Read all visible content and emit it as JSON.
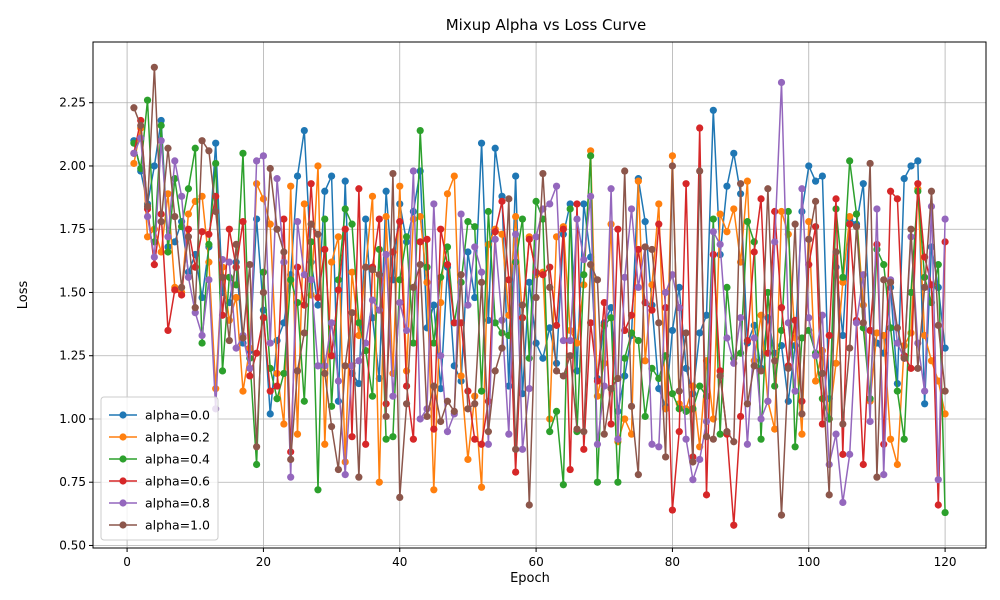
{
  "chart_data": {
    "type": "line",
    "title": "Mixup Alpha vs Loss Curve",
    "xlabel": "Epoch",
    "ylabel": "Loss",
    "xlim": [
      -5,
      126
    ],
    "ylim": [
      0.49,
      2.49
    ],
    "xticks": [
      0,
      20,
      40,
      60,
      80,
      100,
      120
    ],
    "yticks": [
      0.5,
      0.75,
      1.0,
      1.25,
      1.5,
      1.75,
      2.0,
      2.25
    ],
    "ytick_labels": [
      "0.50",
      "0.75",
      "1.00",
      "1.25",
      "1.50",
      "1.75",
      "2.00",
      "2.25"
    ],
    "grid": true,
    "legend_position": "lower-left",
    "x": [
      1,
      2,
      3,
      4,
      5,
      6,
      7,
      8,
      9,
      10,
      11,
      12,
      13,
      14,
      15,
      16,
      17,
      18,
      19,
      20,
      21,
      22,
      23,
      24,
      25,
      26,
      27,
      28,
      29,
      30,
      31,
      32,
      33,
      34,
      35,
      36,
      37,
      38,
      39,
      40,
      41,
      42,
      43,
      44,
      45,
      46,
      47,
      48,
      49,
      50,
      51,
      52,
      53,
      54,
      55,
      56,
      57,
      58,
      59,
      60,
      61,
      62,
      63,
      64,
      65,
      66,
      67,
      68,
      69,
      70,
      71,
      72,
      73,
      74,
      75,
      76,
      77,
      78,
      79,
      80,
      81,
      82,
      83,
      84,
      85,
      86,
      87,
      88,
      89,
      90,
      91,
      92,
      93,
      94,
      95,
      96,
      97,
      98,
      99,
      100,
      101,
      102,
      103,
      104,
      105,
      106,
      107,
      108,
      109,
      110,
      111,
      112,
      113,
      114,
      115,
      116,
      117,
      118,
      119,
      120
    ],
    "series": [
      {
        "name": "alpha=0.0",
        "color": "#1f77b4",
        "values": [
          2.1,
          1.98,
          1.85,
          2.0,
          2.18,
          1.68,
          1.7,
          1.78,
          1.58,
          1.65,
          1.48,
          1.68,
          2.09,
          1.5,
          1.46,
          1.62,
          1.3,
          1.27,
          1.79,
          1.43,
          1.02,
          1.31,
          1.38,
          1.57,
          1.96,
          2.14,
          1.62,
          1.45,
          1.9,
          1.96,
          1.07,
          1.94,
          1.18,
          1.14,
          1.79,
          1.4,
          1.16,
          1.9,
          1.55,
          1.85,
          1.7,
          1.82,
          1.98,
          1.36,
          1.45,
          1.12,
          1.6,
          1.21,
          1.15,
          1.66,
          1.48,
          2.09,
          1.39,
          2.07,
          1.88,
          1.13,
          1.96,
          1.1,
          1.54,
          1.3,
          1.24,
          1.36,
          1.22,
          1.73,
          1.85,
          1.19,
          1.85,
          1.64,
          1.16,
          1.38,
          1.44,
          1.03,
          1.17,
          1.33,
          1.95,
          1.78,
          1.45,
          1.12,
          1.05,
          1.35,
          1.52,
          1.2,
          1.1,
          1.34,
          1.41,
          2.22,
          1.65,
          1.92,
          2.05,
          1.89,
          1.3,
          1.37,
          1.2,
          1.4,
          1.26,
          1.29,
          1.07,
          1.29,
          1.82,
          2.0,
          1.94,
          1.96,
          1.08,
          1.6,
          1.33,
          1.79,
          1.77,
          1.93,
          1.35,
          1.3,
          1.26,
          1.52,
          1.14,
          1.95,
          2.0,
          2.02,
          1.06,
          1.68,
          1.52,
          1.28
        ]
      },
      {
        "name": "alpha=0.2",
        "color": "#ff7f0e",
        "values": [
          2.01,
          2.15,
          1.72,
          1.75,
          1.66,
          1.89,
          1.52,
          1.5,
          1.81,
          1.86,
          1.88,
          1.62,
          1.12,
          1.6,
          1.39,
          1.48,
          1.11,
          1.28,
          1.93,
          1.87,
          1.77,
          1.18,
          0.98,
          1.92,
          0.94,
          1.85,
          1.49,
          2.0,
          0.9,
          1.62,
          1.72,
          0.83,
          1.58,
          1.33,
          1.6,
          1.88,
          0.75,
          1.8,
          1.18,
          1.92,
          1.19,
          1.79,
          1.8,
          1.54,
          0.72,
          1.46,
          1.89,
          1.96,
          1.17,
          0.84,
          1.09,
          0.73,
          1.69,
          1.75,
          1.73,
          1.41,
          1.8,
          1.4,
          1.72,
          1.57,
          1.58,
          1.0,
          1.72,
          1.76,
          1.35,
          1.3,
          1.53,
          2.06,
          1.09,
          1.22,
          1.77,
          0.91,
          1.0,
          0.94,
          1.94,
          1.23,
          1.53,
          1.85,
          1.04,
          2.04,
          1.06,
          1.04,
          1.13,
          0.89,
          1.23,
          1.0,
          1.81,
          1.74,
          1.83,
          1.62,
          1.94,
          1.23,
          1.41,
          1.07,
          0.96,
          1.82,
          1.73,
          1.32,
          0.94,
          1.78,
          1.15,
          1.27,
          1.0,
          1.22,
          1.54,
          1.8,
          1.81,
          1.45,
          1.07,
          1.34,
          1.33,
          0.92,
          0.82,
          1.29,
          1.34,
          1.91,
          1.33,
          1.23,
          1.15,
          1.02
        ]
      },
      {
        "name": "alpha=0.4",
        "color": "#2ca02c",
        "values": [
          2.09,
          1.99,
          2.26,
          1.7,
          2.16,
          1.66,
          1.95,
          1.76,
          1.91,
          2.07,
          1.3,
          1.69,
          2.01,
          1.19,
          1.56,
          1.53,
          2.05,
          1.24,
          0.82,
          1.58,
          1.2,
          1.08,
          1.18,
          1.55,
          1.46,
          1.07,
          1.7,
          0.72,
          1.79,
          1.05,
          1.55,
          1.83,
          1.77,
          1.38,
          1.27,
          1.09,
          1.67,
          0.92,
          0.93,
          1.55,
          1.72,
          1.3,
          2.14,
          1.6,
          1.3,
          1.56,
          1.68,
          1.38,
          1.54,
          1.78,
          1.76,
          1.11,
          1.82,
          1.38,
          1.34,
          1.33,
          1.62,
          1.79,
          1.24,
          1.86,
          1.79,
          0.95,
          1.03,
          0.74,
          1.83,
          0.95,
          1.57,
          2.04,
          0.75,
          1.37,
          1.4,
          0.75,
          1.24,
          1.34,
          1.31,
          1.01,
          1.2,
          1.16,
          1.25,
          1.1,
          1.04,
          1.03,
          1.04,
          1.13,
          1.09,
          1.79,
          0.94,
          1.52,
          1.24,
          1.26,
          1.78,
          1.7,
          0.92,
          1.5,
          1.13,
          1.35,
          1.82,
          0.89,
          1.32,
          1.35,
          1.26,
          1.08,
          1.0,
          1.83,
          1.56,
          2.02,
          1.81,
          1.36,
          1.08,
          1.67,
          1.61,
          1.36,
          1.11,
          0.92,
          1.5,
          1.9,
          1.56,
          1.46,
          1.61,
          0.63
        ]
      },
      {
        "name": "alpha=0.6",
        "color": "#d62728",
        "values": [
          2.05,
          2.18,
          1.83,
          1.61,
          1.81,
          1.35,
          1.51,
          1.49,
          1.75,
          1.6,
          1.74,
          1.73,
          1.88,
          1.41,
          1.75,
          1.6,
          1.78,
          1.17,
          1.26,
          1.4,
          1.11,
          1.13,
          1.79,
          0.87,
          1.6,
          1.45,
          1.93,
          1.48,
          1.67,
          1.25,
          1.51,
          1.75,
          0.93,
          1.91,
          0.9,
          1.6,
          1.79,
          1.06,
          1.66,
          1.78,
          1.13,
          0.92,
          1.7,
          1.71,
          0.96,
          1.75,
          1.61,
          1.38,
          1.38,
          1.11,
          0.92,
          0.9,
          1.07,
          1.74,
          1.86,
          1.55,
          0.79,
          1.4,
          1.71,
          1.58,
          1.57,
          1.6,
          1.37,
          1.75,
          0.8,
          1.85,
          0.88,
          1.38,
          1.15,
          1.46,
          0.98,
          1.75,
          1.35,
          1.41,
          1.67,
          1.46,
          1.43,
          1.77,
          1.44,
          0.64,
          0.95,
          1.93,
          0.85,
          2.15,
          0.7,
          1.65,
          1.19,
          0.94,
          0.58,
          1.01,
          1.31,
          1.66,
          1.87,
          1.26,
          1.82,
          1.44,
          1.21,
          1.39,
          1.07,
          1.61,
          1.76,
          0.98,
          1.33,
          1.87,
          0.86,
          1.77,
          1.39,
          0.82,
          1.35,
          1.69,
          0.9,
          1.9,
          1.87,
          1.25,
          1.2,
          1.93,
          1.64,
          1.53,
          0.66,
          1.7
        ]
      },
      {
        "name": "alpha=0.8",
        "color": "#9467bd",
        "values": [
          2.05,
          2.11,
          1.8,
          1.64,
          2.1,
          1.72,
          2.02,
          1.88,
          1.56,
          1.42,
          1.33,
          1.55,
          1.04,
          1.63,
          1.62,
          1.28,
          1.33,
          1.2,
          2.02,
          2.04,
          1.3,
          1.95,
          1.62,
          0.77,
          1.78,
          1.57,
          1.55,
          1.21,
          1.21,
          1.38,
          1.15,
          0.78,
          1.21,
          1.23,
          1.3,
          1.47,
          1.43,
          1.65,
          1.09,
          1.46,
          1.35,
          1.98,
          1.0,
          1.04,
          1.85,
          1.25,
          0.95,
          1.02,
          1.81,
          1.45,
          1.68,
          1.58,
          0.9,
          1.71,
          1.39,
          0.94,
          1.73,
          0.88,
          1.12,
          1.72,
          1.83,
          1.85,
          1.92,
          1.31,
          1.31,
          1.79,
          1.63,
          1.88,
          0.9,
          1.13,
          1.91,
          0.92,
          1.56,
          1.83,
          1.52,
          1.68,
          0.9,
          0.89,
          1.5,
          1.57,
          1.44,
          0.92,
          0.76,
          0.84,
          0.99,
          1.74,
          1.69,
          1.32,
          1.22,
          1.4,
          0.9,
          1.32,
          1.0,
          1.07,
          1.7,
          2.33,
          1.38,
          1.11,
          1.91,
          1.4,
          1.25,
          1.41,
          0.82,
          0.94,
          0.67,
          0.86,
          1.38,
          1.57,
          0.99,
          1.83,
          0.78,
          1.55,
          1.3,
          1.24,
          1.72,
          1.3,
          1.11,
          1.84,
          0.76,
          1.79
        ]
      },
      {
        "name": "alpha=1.0",
        "color": "#8c564b",
        "values": [
          2.23,
          2.16,
          1.84,
          2.39,
          1.78,
          2.07,
          1.8,
          1.52,
          1.72,
          1.44,
          2.1,
          2.06,
          1.82,
          1.56,
          1.31,
          1.69,
          1.32,
          1.61,
          0.89,
          1.5,
          1.99,
          1.75,
          1.66,
          0.84,
          1.19,
          1.34,
          1.77,
          1.73,
          1.18,
          0.97,
          0.8,
          1.21,
          1.42,
          0.77,
          1.6,
          1.59,
          1.57,
          1.01,
          1.97,
          0.69,
          1.06,
          1.52,
          1.61,
          1.01,
          1.13,
          0.99,
          1.07,
          1.03,
          1.57,
          1.04,
          1.06,
          1.54,
          0.95,
          1.19,
          1.28,
          1.87,
          0.88,
          1.45,
          0.66,
          1.48,
          1.97,
          1.52,
          1.19,
          1.17,
          1.25,
          0.96,
          0.95,
          1.61,
          1.55,
          0.94,
          1.12,
          1.16,
          1.98,
          1.05,
          0.78,
          1.68,
          1.67,
          1.38,
          0.85,
          2.0,
          1.11,
          1.34,
          0.83,
          1.98,
          0.93,
          0.92,
          1.17,
          0.95,
          0.91,
          1.93,
          1.06,
          1.21,
          1.19,
          1.91,
          1.23,
          0.62,
          1.2,
          1.77,
          1.02,
          1.71,
          1.86,
          1.18,
          0.7,
          1.66,
          0.98,
          1.28,
          1.76,
          1.38,
          2.01,
          0.77,
          1.55,
          1.54,
          1.36,
          1.24,
          1.75,
          1.2,
          1.52,
          1.9,
          1.37,
          1.11
        ]
      }
    ]
  }
}
